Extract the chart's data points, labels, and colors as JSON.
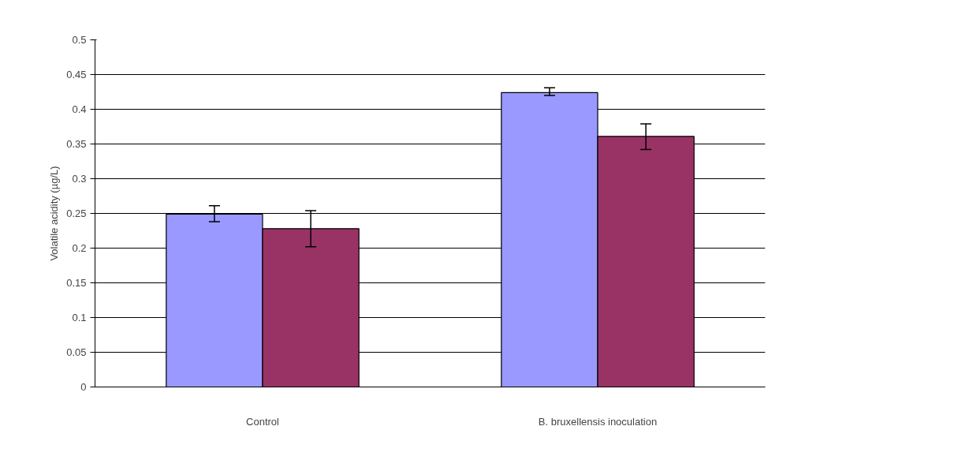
{
  "chart_data": {
    "type": "bar",
    "ylabel": "Volatile acidity (µg/L)",
    "categories": [
      "Control",
      "B. bruxellensis inoculation"
    ],
    "series": [
      {
        "color": "#9999ff",
        "values": [
          0.249,
          0.424
        ],
        "errors": [
          [
            0.238,
            0.261
          ],
          [
            0.42,
            0.431
          ]
        ]
      },
      {
        "color": "#993366",
        "values": [
          0.228,
          0.361
        ],
        "errors": [
          [
            0.202,
            0.254
          ],
          [
            0.342,
            0.379
          ]
        ]
      }
    ],
    "ylim": [
      0,
      0.5
    ],
    "yticks": [
      0,
      0.05,
      0.1,
      0.15,
      0.2,
      0.25,
      0.3,
      0.35,
      0.4,
      0.45,
      0.5
    ],
    "grid": "y"
  }
}
